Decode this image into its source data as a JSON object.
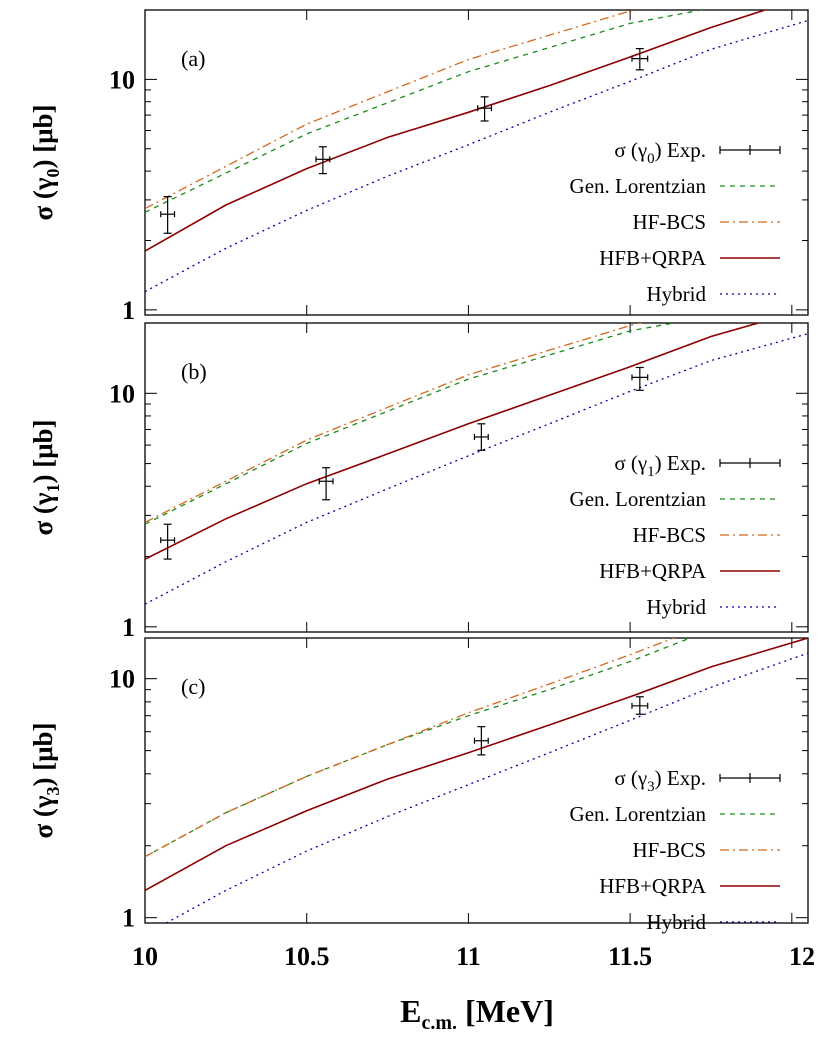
{
  "colors": {
    "exp": "#000000",
    "gen_lorentzian": "#1a8a1a",
    "hf_bcs": "#d2691e",
    "hfb_qrpa": "#8b0000",
    "hybrid": "#0000a8"
  },
  "figure": {
    "xlabel_main": "E",
    "xlabel_sub": "c.m.",
    "xlabel_unit": "[MeV]"
  },
  "chart_data": [
    {
      "type": "line",
      "panel_label": "(a)",
      "ylabel_prefix": "σ (γ",
      "ylabel_sub": "0",
      "ylabel_suffix": ") [μb]",
      "xlim": [
        10,
        12.05
      ],
      "ylim": [
        0.95,
        20
      ],
      "yscale": "log",
      "x_ticks": [
        "10",
        "10.5",
        "11",
        "11.5",
        "12"
      ],
      "y_ticks": [
        {
          "value": 1,
          "label": "1"
        },
        {
          "value": 10,
          "label": "10"
        }
      ],
      "legend": [
        {
          "label": "σ (γ0) Exp.",
          "label_main": "σ (γ",
          "label_sub": "0",
          "label_rest": ") Exp.",
          "style": "errorbar",
          "color_key": "exp"
        },
        {
          "label": "Gen. Lorentzian",
          "style": "dashed",
          "color_key": "gen_lorentzian"
        },
        {
          "label": "HF-BCS",
          "style": "dashdot",
          "color_key": "hf_bcs"
        },
        {
          "label": "HFB+QRPA",
          "style": "solid",
          "color_key": "hfb_qrpa"
        },
        {
          "label": "Hybrid",
          "style": "dotted",
          "color_key": "hybrid"
        }
      ],
      "series": [
        {
          "name": "Gen. Lorentzian",
          "color_key": "gen_lorentzian",
          "style": "dashed",
          "x": [
            10,
            10.5,
            11,
            11.5,
            11.95
          ],
          "y": [
            2.65,
            5.8,
            10.8,
            17.5,
            23
          ]
        },
        {
          "name": "HF-BCS",
          "color_key": "hf_bcs",
          "style": "dashdot",
          "x": [
            10,
            10.5,
            11,
            11.5,
            11.75
          ],
          "y": [
            2.75,
            6.4,
            12.2,
            19.8,
            24
          ]
        },
        {
          "name": "HFB+QRPA",
          "color_key": "hfb_qrpa",
          "style": "solid",
          "x": [
            10,
            10.25,
            10.5,
            10.75,
            11,
            11.25,
            11.5,
            11.75,
            12.05
          ],
          "y": [
            1.8,
            2.85,
            4.1,
            5.6,
            7.2,
            9.4,
            12.5,
            16.8,
            23
          ]
        },
        {
          "name": "Hybrid",
          "color_key": "hybrid",
          "style": "dotted",
          "x": [
            10,
            10.25,
            10.5,
            10.75,
            11,
            11.25,
            11.5,
            11.75,
            12.05
          ],
          "y": [
            1.2,
            1.85,
            2.7,
            3.8,
            5.2,
            7.2,
            9.8,
            13.5,
            18
          ]
        }
      ],
      "points": [
        {
          "x": 10.07,
          "y": 2.6,
          "yerr": [
            2.15,
            3.1
          ],
          "xerr": 0.012
        },
        {
          "x": 10.55,
          "y": 4.5,
          "yerr": [
            3.9,
            5.1
          ],
          "xerr": 0.012
        },
        {
          "x": 11.05,
          "y": 7.5,
          "yerr": [
            6.6,
            8.4
          ],
          "xerr": 0.012
        },
        {
          "x": 11.53,
          "y": 12.3,
          "yerr": [
            11.0,
            13.6
          ],
          "xerr": 0.015
        }
      ]
    },
    {
      "type": "line",
      "panel_label": "(b)",
      "ylabel_prefix": "σ (γ",
      "ylabel_sub": "1",
      "ylabel_suffix": ") [μb]",
      "xlim": [
        10,
        12.05
      ],
      "ylim": [
        0.95,
        20
      ],
      "yscale": "log",
      "x_ticks": [
        "10",
        "10.5",
        "11",
        "11.5",
        "12"
      ],
      "y_ticks": [
        {
          "value": 1,
          "label": "1"
        },
        {
          "value": 10,
          "label": "10"
        }
      ],
      "legend": [
        {
          "label": "σ (γ1) Exp.",
          "label_main": "σ (γ",
          "label_sub": "1",
          "label_rest": ") Exp.",
          "style": "errorbar",
          "color_key": "exp"
        },
        {
          "label": "Gen. Lorentzian",
          "style": "dashed",
          "color_key": "gen_lorentzian"
        },
        {
          "label": "HF-BCS",
          "style": "dashdot",
          "color_key": "hf_bcs"
        },
        {
          "label": "HFB+QRPA",
          "style": "solid",
          "color_key": "hfb_qrpa"
        },
        {
          "label": "Hybrid",
          "style": "dotted",
          "color_key": "hybrid"
        }
      ],
      "series": [
        {
          "name": "Gen. Lorentzian",
          "color_key": "gen_lorentzian",
          "style": "dashed",
          "x": [
            10,
            10.5,
            11,
            11.5,
            11.95
          ],
          "y": [
            2.75,
            6.1,
            11.5,
            18.5,
            24
          ]
        },
        {
          "name": "HF-BCS",
          "color_key": "hf_bcs",
          "style": "dashdot",
          "x": [
            10,
            10.5,
            11,
            11.5,
            11.8
          ],
          "y": [
            2.8,
            6.3,
            12,
            19.5,
            25
          ]
        },
        {
          "name": "HFB+QRPA",
          "color_key": "hfb_qrpa",
          "style": "solid",
          "x": [
            10,
            10.25,
            10.5,
            10.75,
            11,
            11.25,
            11.5,
            11.75,
            12.05
          ],
          "y": [
            1.95,
            2.9,
            4.1,
            5.5,
            7.4,
            9.8,
            13,
            17.5,
            23
          ]
        },
        {
          "name": "Hybrid",
          "color_key": "hybrid",
          "style": "dotted",
          "x": [
            10,
            10.25,
            10.5,
            10.75,
            11,
            11.25,
            11.5,
            11.75,
            12.05
          ],
          "y": [
            1.25,
            1.9,
            2.8,
            3.9,
            5.4,
            7.4,
            10.2,
            13.8,
            18
          ]
        }
      ],
      "points": [
        {
          "x": 10.07,
          "y": 2.35,
          "yerr": [
            1.95,
            2.75
          ],
          "xerr": 0.012
        },
        {
          "x": 10.56,
          "y": 4.2,
          "yerr": [
            3.5,
            4.8
          ],
          "xerr": 0.012
        },
        {
          "x": 11.04,
          "y": 6.5,
          "yerr": [
            5.7,
            7.4
          ],
          "xerr": 0.012
        },
        {
          "x": 11.53,
          "y": 11.7,
          "yerr": [
            10.3,
            12.9
          ],
          "xerr": 0.015
        }
      ]
    },
    {
      "type": "line",
      "panel_label": "(c)",
      "ylabel_prefix": "σ (γ",
      "ylabel_sub": "3",
      "ylabel_suffix": ") [μb]",
      "xlim": [
        10,
        12.05
      ],
      "ylim": [
        0.95,
        14.8
      ],
      "yscale": "log",
      "x_ticks": [
        "10",
        "10.5",
        "11",
        "11.5",
        "12"
      ],
      "y_ticks": [
        {
          "value": 1,
          "label": "1"
        },
        {
          "value": 10,
          "label": "10"
        }
      ],
      "legend": [
        {
          "label": "σ (γ3) Exp.",
          "label_main": "σ (γ",
          "label_sub": "3",
          "label_rest": ") Exp.",
          "style": "errorbar",
          "color_key": "exp"
        },
        {
          "label": "Gen. Lorentzian",
          "style": "dashed",
          "color_key": "gen_lorentzian"
        },
        {
          "label": "HF-BCS",
          "style": "dashdot",
          "color_key": "hf_bcs"
        },
        {
          "label": "HFB+QRPA",
          "style": "solid",
          "color_key": "hfb_qrpa"
        },
        {
          "label": "Hybrid",
          "style": "dotted",
          "color_key": "hybrid"
        }
      ],
      "series": [
        {
          "name": "Gen. Lorentzian",
          "color_key": "gen_lorentzian",
          "style": "dashed",
          "x": [
            10,
            10.25,
            10.5,
            10.75,
            11,
            11.25,
            11.5,
            11.75
          ],
          "y": [
            1.8,
            2.75,
            3.9,
            5.3,
            7.0,
            9.0,
            11.8,
            16
          ]
        },
        {
          "name": "HF-BCS",
          "color_key": "hf_bcs",
          "style": "dashdot",
          "x": [
            10,
            10.25,
            10.5,
            10.75,
            11,
            11.25,
            11.5,
            11.7
          ],
          "y": [
            1.8,
            2.75,
            3.9,
            5.3,
            7.2,
            9.5,
            12.6,
            16
          ]
        },
        {
          "name": "HFB+QRPA",
          "color_key": "hfb_qrpa",
          "style": "solid",
          "x": [
            10,
            10.25,
            10.5,
            10.75,
            11,
            11.25,
            11.5,
            11.75,
            12.05
          ],
          "y": [
            1.3,
            2.0,
            2.8,
            3.8,
            4.9,
            6.4,
            8.4,
            11.2,
            14.8
          ]
        },
        {
          "name": "Hybrid",
          "color_key": "hybrid",
          "style": "dotted",
          "x": [
            10,
            10.25,
            10.5,
            10.75,
            11,
            11.25,
            11.5,
            11.75,
            12.05
          ],
          "y": [
            0.85,
            1.3,
            1.9,
            2.65,
            3.6,
            4.9,
            6.7,
            9.2,
            12.8
          ]
        }
      ],
      "points": [
        {
          "x": 11.04,
          "y": 5.5,
          "yerr": [
            4.8,
            6.3
          ],
          "xerr": 0.012
        },
        {
          "x": 11.53,
          "y": 7.7,
          "yerr": [
            7.1,
            8.4
          ],
          "xerr": 0.015
        }
      ]
    }
  ]
}
